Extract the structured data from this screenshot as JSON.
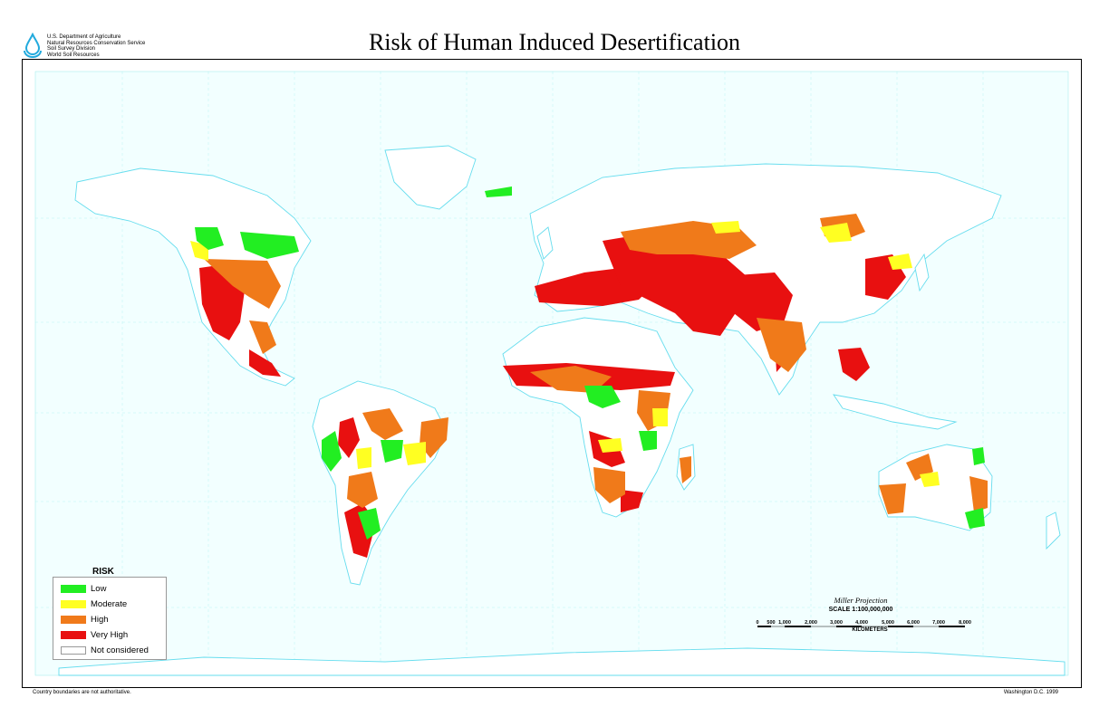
{
  "header": {
    "title": "Risk of Human Induced Desertification",
    "agency_lines": [
      "U.S. Department of Agriculture",
      "Natural Resources Conservation Service",
      "Soil Survey Division",
      "World Soil Resources"
    ]
  },
  "legend": {
    "title": "RISK",
    "items": [
      {
        "label": "Low",
        "color": "#22ee22"
      },
      {
        "label": "Moderate",
        "color": "#ffff22"
      },
      {
        "label": "High",
        "color": "#f07a1a"
      },
      {
        "label": "Very High",
        "color": "#e81010"
      },
      {
        "label": "Not considered",
        "color": "#ffffff"
      }
    ]
  },
  "projection": "Miller Projection",
  "scale": {
    "label": "SCALE 1:100,000,000",
    "ticks": [
      "0",
      "500",
      "1,000",
      "2,000",
      "3,000",
      "4,000",
      "5,000",
      "6,000",
      "7,000",
      "8,000"
    ],
    "unit": "KILOMETERS"
  },
  "footer": {
    "note": "Country boundaries are not authoritative.",
    "place_date": "Washington D.C. 1999"
  },
  "colors": {
    "ocean": "#f2ffff",
    "coast": "#66ddee",
    "land": "#ffffff",
    "low": "#22ee22",
    "moderate": "#ffff22",
    "high": "#f07a1a",
    "very_high": "#e81010"
  }
}
